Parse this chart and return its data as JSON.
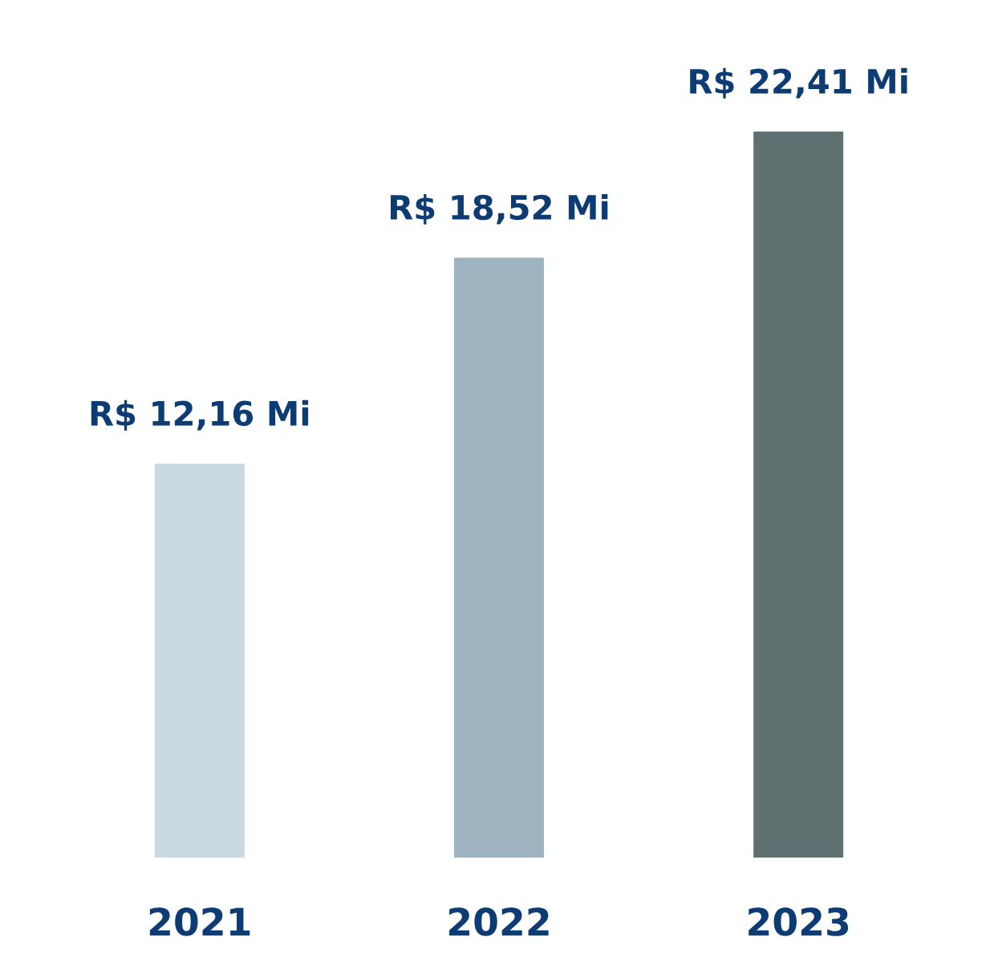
{
  "chart_data": {
    "type": "bar",
    "categories": [
      "2021",
      "2022",
      "2023"
    ],
    "values": [
      12.16,
      18.52,
      22.41
    ],
    "colors": [
      "#c8dadf",
      "#9db4c0",
      "#5f7070"
    ],
    "value_labels": [
      "R$ 12,16 Mi",
      "R$ 18,52 Mi",
      "R$ 22,41 Mi"
    ],
    "grid": false
  }
}
